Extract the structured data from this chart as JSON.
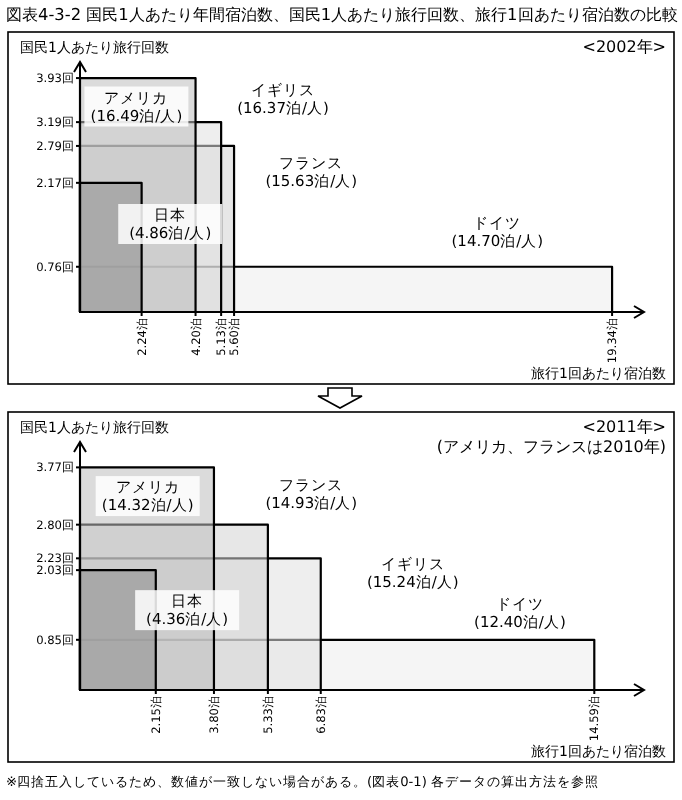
{
  "chart_data": [
    {
      "type": "area",
      "title": "図表4-3-2 国民1人あたり年間宿泊数、国民1人あたり旅行回数、旅行1回あたり宿泊数の比較",
      "subtitle": "<2002年>",
      "ylabel": "国民1人あたり旅行回数",
      "xlabel": "旅行1回あたり宿泊数",
      "xlim": [
        0,
        20.5
      ],
      "ylim": [
        0,
        4.2
      ],
      "xticks": [
        {
          "value": 2.24,
          "label": "2.24泊"
        },
        {
          "value": 4.2,
          "label": "4.20泊"
        },
        {
          "value": 5.13,
          "label": "5.13泊"
        },
        {
          "value": 5.6,
          "label": "5.60泊"
        },
        {
          "value": 19.34,
          "label": "19.34泊"
        }
      ],
      "yticks": [
        {
          "value": 0.76,
          "label": "0.76回"
        },
        {
          "value": 2.17,
          "label": "2.17回"
        },
        {
          "value": 2.79,
          "label": "2.79回"
        },
        {
          "value": 3.19,
          "label": "3.19回"
        },
        {
          "value": 3.93,
          "label": "3.93回"
        }
      ],
      "series": [
        {
          "color": "#ececec",
          "x": [
            0,
            19.34
          ],
          "values": [
            0.76,
            0.76
          ]
        },
        {
          "color": "#d4d4d4",
          "x": [
            0,
            5.6
          ],
          "values": [
            2.79,
            2.79
          ]
        },
        {
          "color": "#e0e0e0",
          "x": [
            0,
            5.13
          ],
          "values": [
            3.19,
            3.19
          ]
        },
        {
          "color": "#bdbdbd",
          "x": [
            0,
            4.2
          ],
          "values": [
            3.93,
            3.93
          ]
        },
        {
          "color": "#8c8c8c",
          "x": [
            0,
            2.24
          ],
          "values": [
            2.17,
            2.17
          ]
        }
      ],
      "annotations": [
        "アメリカ (16.49泊/人)",
        "イギリス (16.37泊/人)",
        "フランス (15.63泊/人)",
        "日本 (4.86泊/人)",
        "ドイツ (14.70泊/人)"
      ]
    },
    {
      "type": "area",
      "subtitle": "<2011年>\n(アメリカ、フランスは2010年)",
      "ylabel": "国民1人あたり旅行回数",
      "xlabel": "旅行1回あたり宿泊数",
      "xlim": [
        0,
        16
      ],
      "ylim": [
        0,
        4.2
      ],
      "xticks": [
        {
          "value": 2.15,
          "label": "2.15泊"
        },
        {
          "value": 3.8,
          "label": "3.80泊"
        },
        {
          "value": 5.33,
          "label": "5.33泊"
        },
        {
          "value": 6.83,
          "label": "6.83泊"
        },
        {
          "value": 14.59,
          "label": "14.59泊"
        }
      ],
      "yticks": [
        {
          "value": 0.85,
          "label": "0.85回"
        },
        {
          "value": 2.03,
          "label": "2.03回"
        },
        {
          "value": 2.23,
          "label": "2.23回"
        },
        {
          "value": 2.8,
          "label": "2.80回"
        },
        {
          "value": 3.77,
          "label": "3.77回"
        }
      ],
      "series": [
        {
          "color": "#ececec",
          "x": [
            0,
            14.59
          ],
          "values": [
            0.85,
            0.85
          ]
        },
        {
          "color": "#e0e0e0",
          "x": [
            0,
            6.83
          ],
          "values": [
            2.23,
            2.23
          ]
        },
        {
          "color": "#d4d4d4",
          "x": [
            0,
            5.33
          ],
          "values": [
            2.8,
            2.8
          ]
        },
        {
          "color": "#bdbdbd",
          "x": [
            0,
            3.8
          ],
          "values": [
            3.77,
            3.77
          ]
        },
        {
          "color": "#8c8c8c",
          "x": [
            0,
            2.15
          ],
          "values": [
            2.03,
            2.03
          ]
        }
      ],
      "annotations": [
        "アメリカ (14.32泊/人)",
        "フランス (14.93泊/人)",
        "イギリス (15.24泊/人)",
        "日本 (4.36泊/人)",
        "ドイツ (12.40泊/人)",
        "※四捨五入しているため、数値が一致しない場合がある。(図表0-1) 各データの算出方法を参照"
      ]
    }
  ]
}
